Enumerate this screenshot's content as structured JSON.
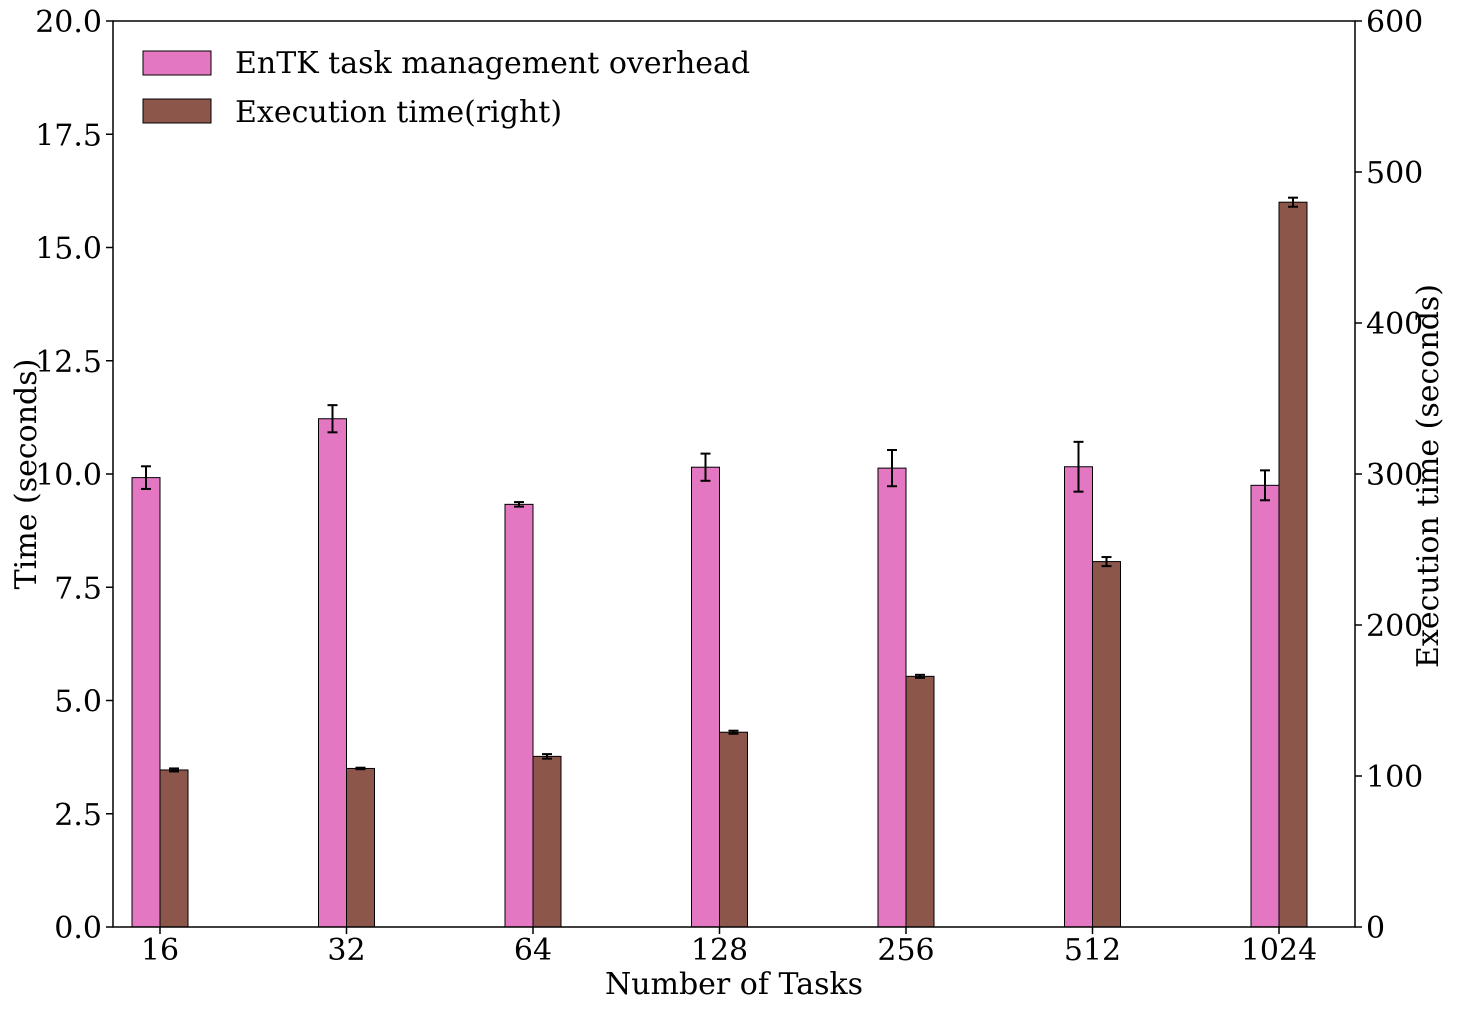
{
  "chart_data": {
    "type": "bar",
    "categories": [
      "16",
      "32",
      "64",
      "128",
      "256",
      "512",
      "1024"
    ],
    "xlabel": "Number of Tasks",
    "ylabel": "Time (seconds)",
    "ylabel_right": "Execution time (seconds)",
    "ylim": [
      0,
      20
    ],
    "ylim_right": [
      0,
      600
    ],
    "yticks": [
      "0.0",
      "2.5",
      "5.0",
      "7.5",
      "10.0",
      "12.5",
      "15.0",
      "17.5",
      "20.0"
    ],
    "yticks_right": [
      "0",
      "100",
      "200",
      "300",
      "400",
      "500",
      "600"
    ],
    "legend_position": "top-left",
    "series": [
      {
        "name": "EnTK task management overhead",
        "axis": "left",
        "color": "#e377c2",
        "values": [
          9.92,
          11.22,
          9.33,
          10.15,
          10.13,
          10.16,
          9.75
        ],
        "errors": [
          0.25,
          0.3,
          0.05,
          0.3,
          0.4,
          0.55,
          0.33
        ]
      },
      {
        "name": "Execution time(right)",
        "axis": "right",
        "color": "#8c564b",
        "values": [
          104,
          105,
          113,
          129,
          166,
          242,
          480
        ],
        "errors": [
          1,
          0.5,
          1.5,
          1,
          1,
          3,
          3
        ]
      }
    ]
  }
}
